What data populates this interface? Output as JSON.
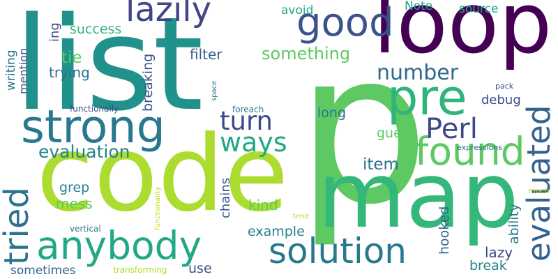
{
  "words": [
    {
      "text": "p",
      "color": "#5ec962"
    },
    {
      "text": "list",
      "color": "#21918c"
    },
    {
      "text": "code",
      "color": "#addc30"
    },
    {
      "text": "map",
      "color": "#35b779"
    },
    {
      "text": "loop",
      "color": "#440154"
    },
    {
      "text": "strong",
      "color": "#2a788e"
    },
    {
      "text": "anybody",
      "color": "#22a884"
    },
    {
      "text": "pre",
      "color": "#2fb47c"
    },
    {
      "text": "solution",
      "color": "#2a788e"
    },
    {
      "text": "good",
      "color": "#3b528b"
    },
    {
      "text": "found",
      "color": "#5ec962"
    },
    {
      "text": "evaluated",
      "color": "#33638d"
    },
    {
      "text": "lazily",
      "color": "#414487"
    },
    {
      "text": "tried",
      "color": "#2c728e"
    },
    {
      "text": "Perl",
      "color": "#3e4989"
    },
    {
      "text": "ways",
      "color": "#22a884"
    },
    {
      "text": "turn",
      "color": "#3e4989"
    },
    {
      "text": "number",
      "color": "#30698e"
    },
    {
      "text": "evaluation",
      "color": "#26818e"
    },
    {
      "text": "something",
      "color": "#5ec962"
    },
    {
      "text": "item",
      "color": "#2c728e"
    },
    {
      "text": "example",
      "color": "#25838e"
    },
    {
      "text": "success",
      "color": "#2fb47c"
    },
    {
      "text": "break",
      "color": "#25838e"
    },
    {
      "text": "lazy",
      "color": "#3e4989"
    },
    {
      "text": "hooked",
      "color": "#31688e"
    },
    {
      "text": "chains",
      "color": "#3b528b"
    },
    {
      "text": "ability",
      "color": "#2a788e"
    },
    {
      "text": "kind",
      "color": "#5ec962"
    },
    {
      "text": "mess",
      "color": "#5ec962"
    },
    {
      "text": "tie",
      "color": "#5ec962"
    },
    {
      "text": "filter",
      "color": "#355f8d"
    },
    {
      "text": "trying",
      "color": "#2c728e"
    },
    {
      "text": "breaking",
      "color": "#3b528b"
    },
    {
      "text": "debug",
      "color": "#3e4989"
    },
    {
      "text": "long",
      "color": "#2c728e"
    },
    {
      "text": "guess",
      "color": "#5ec962"
    },
    {
      "text": "grep",
      "color": "#26828e"
    },
    {
      "text": "use",
      "color": "#3b528b"
    },
    {
      "text": "sometimes",
      "color": "#33638d"
    },
    {
      "text": "mention",
      "color": "#3b528b"
    },
    {
      "text": "writing",
      "color": "#2c728e"
    },
    {
      "text": "ing",
      "color": "#3e4989"
    },
    {
      "text": "avoid",
      "color": "#22a884"
    },
    {
      "text": "Note",
      "color": "#1fa187"
    },
    {
      "text": "source",
      "color": "#22a884"
    },
    {
      "text": "functionally",
      "color": "#3e4989"
    },
    {
      "text": "foreach",
      "color": "#2a788e"
    },
    {
      "text": "space",
      "color": "#2c728e"
    },
    {
      "text": "pack",
      "color": "#3e4989"
    },
    {
      "text": "expressions",
      "color": "#31688e"
    },
    {
      "text": "much",
      "color": "#c2df23"
    },
    {
      "text": "tend",
      "color": "#9fda3a"
    },
    {
      "text": "vertical",
      "color": "#2a788e"
    },
    {
      "text": "functionality",
      "color": "#c2df23"
    },
    {
      "text": "transforming",
      "color": "#addc30"
    }
  ]
}
